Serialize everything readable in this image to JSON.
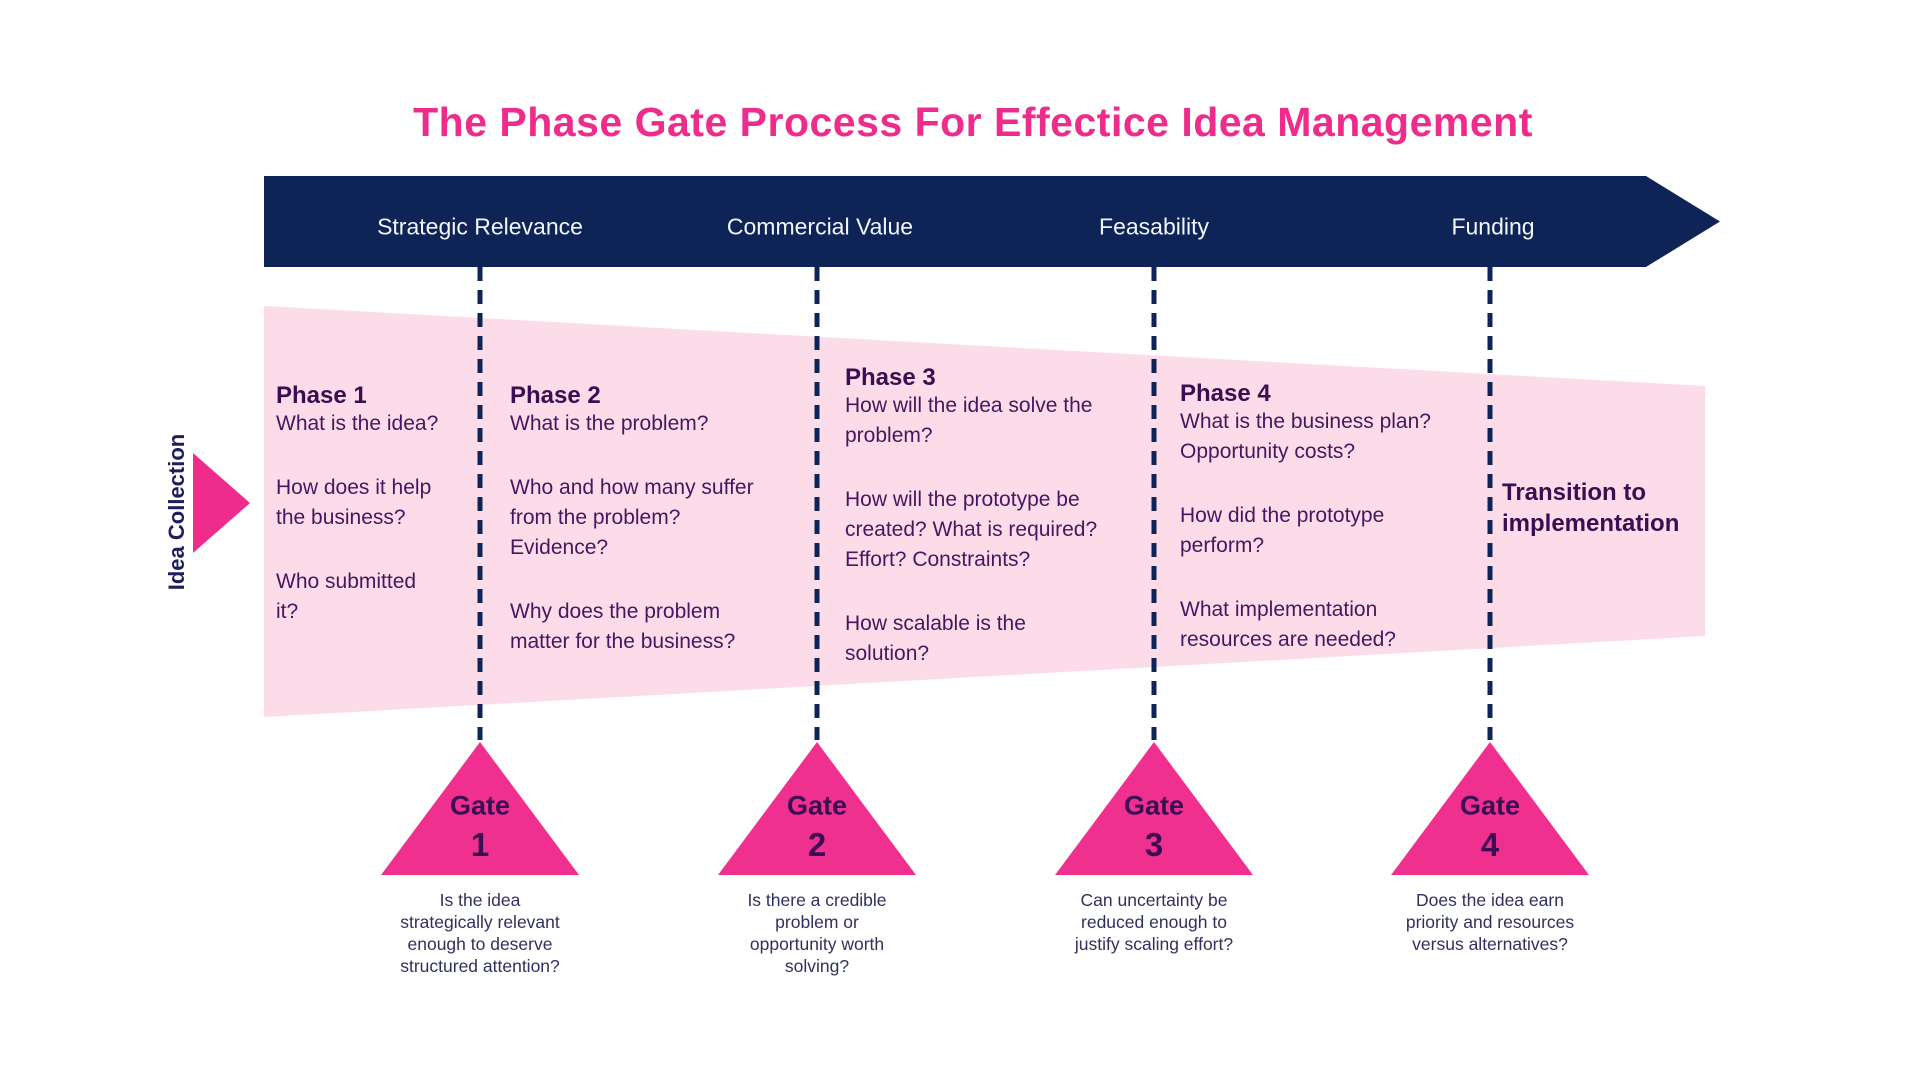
{
  "title": {
    "text": "The Phase Gate Process For Effectice Idea Management"
  },
  "colors": {
    "title_pink": "#ee2c8b",
    "banner_navy": "#0e2457",
    "banner_text": "#f2f5fa",
    "funnel_pink": "#fbdce8",
    "gate_pink": "#ef308e",
    "arrow_pink": "#ee2c8b",
    "dash_navy": "#0e2457",
    "heading_purple": "#3b0d53",
    "body_purple": "#4a1560",
    "caption_indigo": "#30305f",
    "side_label_navy": "#1f1d5c"
  },
  "banner": {
    "stages": [
      "Strategic Relevance",
      "Commercial Value",
      "Feasability",
      "Funding"
    ]
  },
  "idea_collection": {
    "label": "Idea Collection"
  },
  "phases": [
    {
      "title": "Phase 1",
      "questions": [
        [
          "What is the idea?"
        ],
        [
          "How does it help",
          "the business?"
        ],
        [
          "Who submitted",
          "it?"
        ]
      ]
    },
    {
      "title": "Phase 2",
      "questions": [
        [
          "What is the problem?"
        ],
        [
          "Who and how many suffer",
          "from the problem?",
          "Evidence?"
        ],
        [
          "Why does the problem",
          "matter for the business?"
        ]
      ]
    },
    {
      "title": "Phase 3",
      "questions": [
        [
          "How will the idea solve the",
          "problem?"
        ],
        [
          "How will the prototype be",
          "created? What is required?",
          "Effort? Constraints?"
        ],
        [
          "How scalable is the",
          "solution?"
        ]
      ]
    },
    {
      "title": "Phase 4",
      "questions": [
        [
          "What is the business plan?",
          "Opportunity costs?"
        ],
        [
          "How did the prototype",
          "perform?"
        ],
        [
          "What implementation",
          "resources are needed?"
        ]
      ]
    }
  ],
  "transition": {
    "lines": [
      "Transition to",
      "implementation"
    ]
  },
  "gates": [
    {
      "label": "Gate",
      "number": "1",
      "question": [
        "Is the idea",
        "strategically relevant",
        "enough to deserve",
        "structured attention?"
      ]
    },
    {
      "label": "Gate",
      "number": "2",
      "question": [
        "Is there a credible",
        "problem or",
        "opportunity worth",
        "solving?"
      ]
    },
    {
      "label": "Gate",
      "number": "3",
      "question": [
        "Can uncertainty be",
        "reduced enough to",
        "justify scaling effort?"
      ]
    },
    {
      "label": "Gate",
      "number": "4",
      "question": [
        "Does the idea earn",
        "priority and resources",
        "versus alternatives?"
      ]
    }
  ]
}
